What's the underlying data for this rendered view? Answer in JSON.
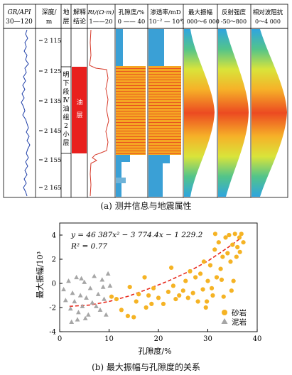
{
  "log_panel": {
    "tracks": [
      {
        "title": "GR/API",
        "scale": "30—120"
      },
      {
        "title": "深度/",
        "scale": "m"
      },
      {
        "title": "地",
        "scale": "层"
      },
      {
        "title": "解释",
        "scale": "结论"
      },
      {
        "title": "Rt/(Ω·m)",
        "scale": "1——20"
      },
      {
        "title": "孔隙度/%",
        "scale": "0 —— 40"
      },
      {
        "title": "渗透率/mD",
        "scale": "10⁻² — 10⁴"
      },
      {
        "title": "最大振幅",
        "scale": "1 000～6 000"
      },
      {
        "title": "反射强度",
        "scale": "-50～800"
      },
      {
        "title": "相对波阻抗",
        "scale": "0～4 000"
      }
    ],
    "depths": [
      "2 115",
      "2 125",
      "2 135",
      "2 145",
      "2 155",
      "2 165"
    ],
    "strata_label": [
      "明",
      "下",
      "段",
      "Ⅳ",
      "油",
      "组",
      "2",
      "小",
      "层"
    ],
    "interpretation_label": "油层",
    "colors": {
      "oil_layer": "#e8201e",
      "heat_low": "#2fa5df",
      "heat_high": "#e82a1d"
    }
  },
  "caption_a": "(a) 测井信息与地震属性",
  "caption_b": "(b) 最大振幅与孔隙度的关系",
  "chart_data": {
    "type": "scatter",
    "xlabel": "孔隙度/%",
    "ylabel": "最大振幅/10³",
    "xlim": [
      0,
      40
    ],
    "ylim": [
      -4,
      5
    ],
    "xticks": [
      0,
      10,
      20,
      30,
      40
    ],
    "yticks": [
      -4,
      -2,
      0,
      2,
      4
    ],
    "equation": "y = 46 387x² − 3 774.4x − 1 229.2",
    "r2": "R² = 0.77",
    "legend_position": "bottom-right",
    "series": [
      {
        "name": "砂岩",
        "color": "#f5b324",
        "marker": "circle",
        "points": [
          [
            10.5,
            -1.1
          ],
          [
            11.5,
            -1.3
          ],
          [
            12.5,
            -2.2
          ],
          [
            13.8,
            -2.7
          ],
          [
            14.2,
            -0.3
          ],
          [
            15,
            -2.8
          ],
          [
            15.5,
            -1.5
          ],
          [
            16,
            -0.9
          ],
          [
            17.2,
            0.5
          ],
          [
            17.5,
            -2.0
          ],
          [
            18,
            -1.0
          ],
          [
            18.6,
            -1.7
          ],
          [
            19,
            -0.4
          ],
          [
            20,
            -1.2
          ],
          [
            21,
            -1.7
          ],
          [
            22,
            -0.7
          ],
          [
            22.6,
            1.3
          ],
          [
            23,
            -0.2
          ],
          [
            23.5,
            -1.3
          ],
          [
            24.2,
            -1.0
          ],
          [
            25,
            -0.6
          ],
          [
            25.5,
            0.2
          ],
          [
            26,
            -1.2
          ],
          [
            26.4,
            1.0
          ],
          [
            27,
            -0.8
          ],
          [
            27.5,
            0.5
          ],
          [
            28,
            -1.5
          ],
          [
            28.5,
            0.8
          ],
          [
            29,
            -0.5
          ],
          [
            29.2,
            1.8
          ],
          [
            29.6,
            -2.0
          ],
          [
            30,
            0.2
          ],
          [
            30.5,
            1.5
          ],
          [
            31,
            -1.0
          ],
          [
            31.4,
            2.8
          ],
          [
            31.8,
            0.5
          ],
          [
            32.2,
            3.4
          ],
          [
            32.6,
            1.2
          ],
          [
            33,
            2.2
          ],
          [
            33.2,
            -1.1
          ],
          [
            33.6,
            3.8
          ],
          [
            34,
            2.5
          ],
          [
            34.3,
            4.0
          ],
          [
            34.6,
            1.8
          ],
          [
            35,
            3.2
          ],
          [
            35.2,
            0.2
          ],
          [
            35.5,
            4.1
          ],
          [
            35.8,
            2.2
          ],
          [
            36,
            3.0
          ],
          [
            36.4,
            3.8
          ],
          [
            36.8,
            4.1
          ],
          [
            37.2,
            3.4
          ],
          [
            31.5,
            4.1
          ],
          [
            32.8,
            0.3
          ],
          [
            34.8,
            -0.6
          ],
          [
            30.8,
            -0.4
          ],
          [
            29.8,
            -1.5
          ],
          [
            36.5,
            2.6
          ]
        ]
      },
      {
        "name": "泥岩",
        "color": "#a6a6a6",
        "marker": "triangle",
        "points": [
          [
            0.8,
            -0.5
          ],
          [
            1.2,
            -1.4
          ],
          [
            1.8,
            0.2
          ],
          [
            2.2,
            -2.1
          ],
          [
            2.6,
            -0.8
          ],
          [
            3,
            -1.5
          ],
          [
            3.4,
            0.5
          ],
          [
            3.8,
            -2.4
          ],
          [
            4.2,
            -1.0
          ],
          [
            4.6,
            -1.9
          ],
          [
            5,
            0.1
          ],
          [
            5.4,
            -1.2
          ],
          [
            5.8,
            -2.6
          ],
          [
            6.2,
            -0.4
          ],
          [
            6.6,
            -1.6
          ],
          [
            7,
            0.6
          ],
          [
            7.4,
            -1.9
          ],
          [
            7.8,
            -0.9
          ],
          [
            8.2,
            -2.2
          ],
          [
            8.6,
            0.3
          ],
          [
            9,
            -1.3
          ],
          [
            9.4,
            -2.6
          ],
          [
            9.8,
            0.8
          ],
          [
            10.2,
            -0.2
          ],
          [
            2.4,
            -3.2
          ],
          [
            3.6,
            -3.0
          ],
          [
            5.2,
            -2.9
          ],
          [
            4.4,
            0.4
          ],
          [
            8.8,
            -0.3
          ]
        ]
      }
    ],
    "fit_curve": {
      "style": "dashed",
      "color": "#e82a1d",
      "points": [
        [
          2,
          -1.9
        ],
        [
          6,
          -1.8
        ],
        [
          10,
          -1.5
        ],
        [
          14,
          -1.05
        ],
        [
          18,
          -0.45
        ],
        [
          22,
          0.2
        ],
        [
          26,
          0.95
        ],
        [
          30,
          1.85
        ],
        [
          34,
          2.95
        ],
        [
          36.5,
          3.7
        ]
      ]
    }
  }
}
